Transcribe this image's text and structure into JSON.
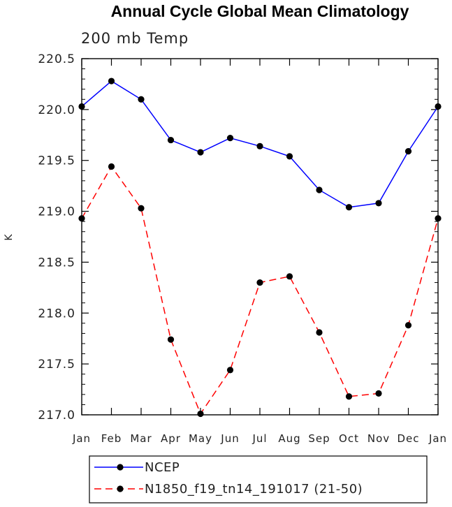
{
  "chart_data": {
    "type": "line",
    "title": "Annual Cycle Global Mean Climatology",
    "subtitle": "200 mb Temp",
    "ylabel": "K",
    "xlabel": "",
    "categories": [
      "Jan",
      "Feb",
      "Mar",
      "Apr",
      "May",
      "Jun",
      "Jul",
      "Aug",
      "Sep",
      "Oct",
      "Nov",
      "Dec",
      "Jan"
    ],
    "ylim": [
      217.0,
      220.5
    ],
    "yticks": [
      "217.0",
      "217.5",
      "218.0",
      "218.5",
      "219.0",
      "219.5",
      "220.0",
      "220.5"
    ],
    "series": [
      {
        "name": "NCEP",
        "color": "#0000ff",
        "style": "solid",
        "values": [
          220.03,
          220.28,
          220.1,
          219.7,
          219.58,
          219.72,
          219.64,
          219.54,
          219.21,
          219.04,
          219.08,
          219.59,
          220.03
        ]
      },
      {
        "name": "N1850_f19_tn14_191017 (21-50)",
        "color": "#ff0000",
        "style": "dashed",
        "values": [
          218.93,
          219.44,
          219.03,
          217.74,
          217.01,
          217.44,
          218.3,
          218.36,
          217.81,
          217.18,
          217.21,
          217.88,
          218.93
        ]
      }
    ],
    "legend": "bottom",
    "grid": false
  }
}
